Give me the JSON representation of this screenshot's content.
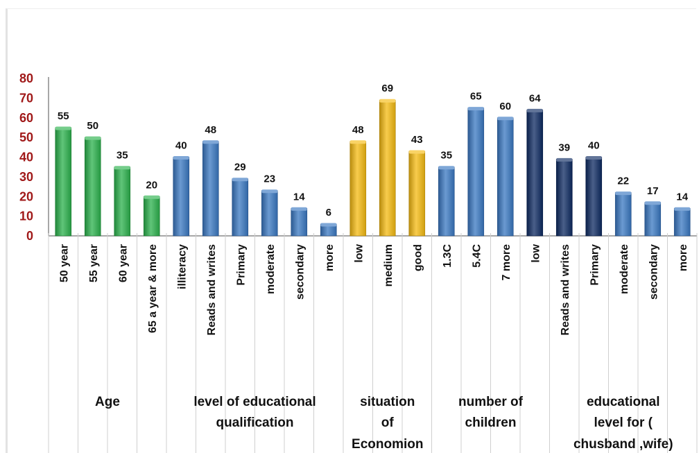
{
  "chart_data": {
    "type": "bar",
    "title": "",
    "xlabel": "",
    "ylabel": "",
    "ylim": [
      0,
      80
    ],
    "yticks": [
      0,
      10,
      20,
      30,
      40,
      50,
      60,
      70,
      80
    ],
    "grid": false,
    "legend": "none",
    "categories": [
      "50 year",
      "55 year",
      "60 year",
      "65 a year & more",
      "illiteracy",
      "Reads and writes",
      "Primary",
      "moderate",
      "secondary",
      "more",
      "low",
      "medium",
      "good",
      "1.3C",
      "5.4C",
      "7 more",
      "low",
      "Reads and writes",
      "Primary",
      "moderate",
      "secondary",
      "more"
    ],
    "values": [
      55,
      50,
      35,
      20,
      40,
      48,
      29,
      23,
      14,
      6,
      48,
      69,
      43,
      35,
      65,
      60,
      64,
      39,
      40,
      22,
      17,
      14
    ],
    "bar_colors": [
      "#2bb24c",
      "#2bb24c",
      "#2bb24c",
      "#2bb24c",
      "#3a78c2",
      "#3a78c2",
      "#3a78c2",
      "#3a78c2",
      "#3a78c2",
      "#3a78c2",
      "#f5bb12",
      "#f5bb12",
      "#f5bb12",
      "#3a78c2",
      "#3a78c2",
      "#3a78c2",
      "#0d2a62",
      "#0d2a62",
      "#0d2a62",
      "#3a78c2",
      "#3a78c2",
      "#3a78c2"
    ],
    "groups": [
      {
        "lines": [
          "Age"
        ],
        "start": 0,
        "end": 3
      },
      {
        "lines": [
          "level of educational",
          "qualification"
        ],
        "start": 4,
        "end": 9
      },
      {
        "lines": [
          "situation",
          "of",
          "Economion"
        ],
        "start": 10,
        "end": 12
      },
      {
        "lines": [
          "number of",
          "children"
        ],
        "start": 13,
        "end": 16
      },
      {
        "lines": [
          "educational",
          "level for (",
          "chusband ,wife)"
        ],
        "start": 17,
        "end": 21
      }
    ],
    "colors": {
      "axis_labels": "#a01919",
      "axis": "#8a8a8a",
      "separator": "#cfcfcf"
    }
  }
}
